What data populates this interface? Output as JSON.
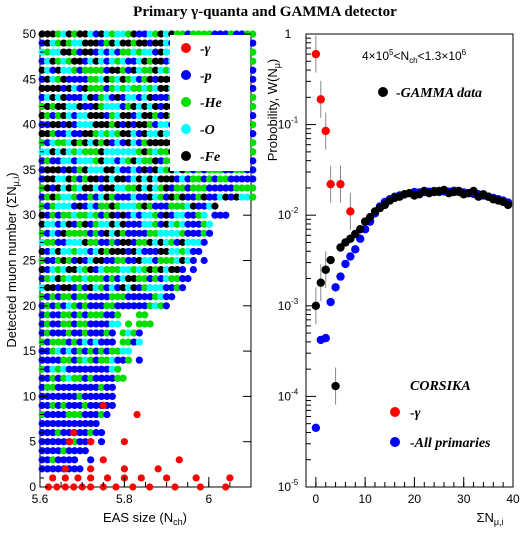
{
  "title": "Primary γ-quanta and GAMMA detector",
  "chart_data": [
    {
      "type": "scatter",
      "xlabel": "EAS size (N",
      "xlabel_sub": "ch",
      "xlabel_close": ")",
      "ylabel": "Detected muon number (ΣN",
      "ylabel_sub": "μ,i",
      "ylabel_close": ")",
      "xlim": [
        5.6,
        6.1
      ],
      "ylim": [
        0,
        50
      ],
      "x_ticks": [
        "5.6",
        "5.8",
        "6"
      ],
      "y_ticks": [
        "0",
        "5",
        "10",
        "15",
        "20",
        "25",
        "30",
        "35",
        "40",
        "45",
        "50"
      ],
      "legend_position": "top-right",
      "series": [
        {
          "name": "-γ",
          "color": "#ff0000",
          "region": {
            "points": [
              [
                5.62,
                0
              ],
              [
                5.64,
                0
              ],
              [
                5.66,
                0
              ],
              [
                5.68,
                0
              ],
              [
                5.7,
                0
              ],
              [
                5.72,
                0
              ],
              [
                5.75,
                0
              ],
              [
                5.78,
                0
              ],
              [
                5.82,
                0
              ],
              [
                5.86,
                0
              ],
              [
                5.92,
                0
              ],
              [
                5.98,
                0
              ],
              [
                6.04,
                0
              ],
              [
                5.63,
                1
              ],
              [
                5.66,
                1
              ],
              [
                5.69,
                1
              ],
              [
                5.72,
                1
              ],
              [
                5.76,
                1
              ],
              [
                5.8,
                1
              ],
              [
                5.84,
                1
              ],
              [
                5.9,
                1
              ],
              [
                5.97,
                1
              ],
              [
                6.05,
                1
              ],
              [
                5.66,
                2
              ],
              [
                5.72,
                2
              ],
              [
                5.8,
                2
              ],
              [
                5.88,
                2
              ],
              [
                5.75,
                3
              ],
              [
                5.93,
                3
              ],
              [
                5.67,
                5
              ],
              [
                5.72,
                5
              ],
              [
                5.8,
                5
              ],
              [
                5.68,
                6
              ],
              [
                5.83,
                8
              ],
              [
                5.75,
                9
              ]
            ]
          }
        },
        {
          "name": "-p",
          "color": "#0000ff",
          "region": {
            "note": "low-density right / lower fringe"
          }
        },
        {
          "name": "-He",
          "color": "#00dd00",
          "region": {}
        },
        {
          "name": "-O",
          "color": "#00ffff",
          "region": {}
        },
        {
          "name": "-Fe",
          "color": "#000000",
          "region": {}
        }
      ]
    },
    {
      "type": "scatter",
      "annotation": "4×10",
      "annotation_exp1": "5",
      "annotation_mid": "<N",
      "annotation_sub": "ch",
      "annotation_mid2": "<1.3×10",
      "annotation_exp2": "6",
      "xlabel": "ΣN",
      "xlabel_sub": "μ,i",
      "ylabel": "Probobility, W(N",
      "ylabel_sub": "μ",
      "ylabel_close": ")",
      "xlim": [
        -2,
        40
      ],
      "ylim_log10": [
        -5,
        0
      ],
      "log_y": true,
      "x_ticks": [
        "0",
        "10",
        "20",
        "30",
        "40"
      ],
      "y_tick_bases": [
        "10",
        "10",
        "10",
        "10",
        "10",
        "1"
      ],
      "y_tick_exps": [
        "-5",
        "-4",
        "-3",
        "-2",
        "-1",
        ""
      ],
      "legend_top": "-GAMMA data",
      "corsika_label": "CORSIKA",
      "legend_bottom": [
        "-γ",
        "-All primaries"
      ],
      "series": [
        {
          "name": "-GAMMA data",
          "color": "#000000",
          "x": [
            0,
            1,
            2,
            3,
            4,
            5,
            6,
            7,
            8,
            9,
            10,
            11,
            12,
            13,
            14,
            15,
            16,
            17,
            18,
            19,
            20,
            21,
            22,
            23,
            24,
            25,
            26,
            27,
            28,
            29,
            30,
            31,
            32,
            33,
            34,
            35,
            36,
            37,
            38,
            39
          ],
          "y": [
            0.001,
            0.0018,
            0.0025,
            0.0032,
            0.00013,
            0.0044,
            0.005,
            0.0055,
            0.0062,
            0.007,
            0.0085,
            0.0095,
            0.011,
            0.012,
            0.013,
            0.0145,
            0.0155,
            0.016,
            0.017,
            0.0175,
            0.0165,
            0.017,
            0.0185,
            0.0175,
            0.018,
            0.0185,
            0.019,
            0.0175,
            0.018,
            0.0185,
            0.017,
            0.0175,
            0.0185,
            0.016,
            0.017,
            0.016,
            0.015,
            0.0145,
            0.014,
            0.013
          ]
        },
        {
          "name": "-γ",
          "color": "#ff0000",
          "x": [
            0,
            1,
            2,
            3,
            5,
            7
          ],
          "y": [
            0.6,
            0.19,
            0.085,
            0.022,
            0.022,
            0.011
          ]
        },
        {
          "name": "-All primaries",
          "color": "#0000ff",
          "x": [
            0,
            1,
            2,
            3,
            4,
            5,
            6,
            7,
            8,
            9,
            10,
            11,
            12,
            13,
            14,
            15,
            16,
            17,
            18,
            19,
            20,
            21,
            22,
            23,
            24,
            25,
            26,
            27,
            28,
            29,
            30,
            31,
            32,
            33,
            34,
            35,
            36,
            37,
            38,
            39
          ],
          "y": [
            4.5e-05,
            0.00042,
            0.00044,
            0.0011,
            0.0016,
            0.0021,
            0.0029,
            0.0035,
            0.0042,
            0.0055,
            0.007,
            0.0085,
            0.0105,
            0.0125,
            0.014,
            0.015,
            0.016,
            0.0165,
            0.017,
            0.0175,
            0.018,
            0.0178,
            0.018,
            0.0182,
            0.0185,
            0.018,
            0.0183,
            0.0182,
            0.0186,
            0.018,
            0.0178,
            0.0175,
            0.0172,
            0.017,
            0.0165,
            0.016,
            0.0155,
            0.015,
            0.0145,
            0.0138
          ]
        }
      ]
    }
  ]
}
